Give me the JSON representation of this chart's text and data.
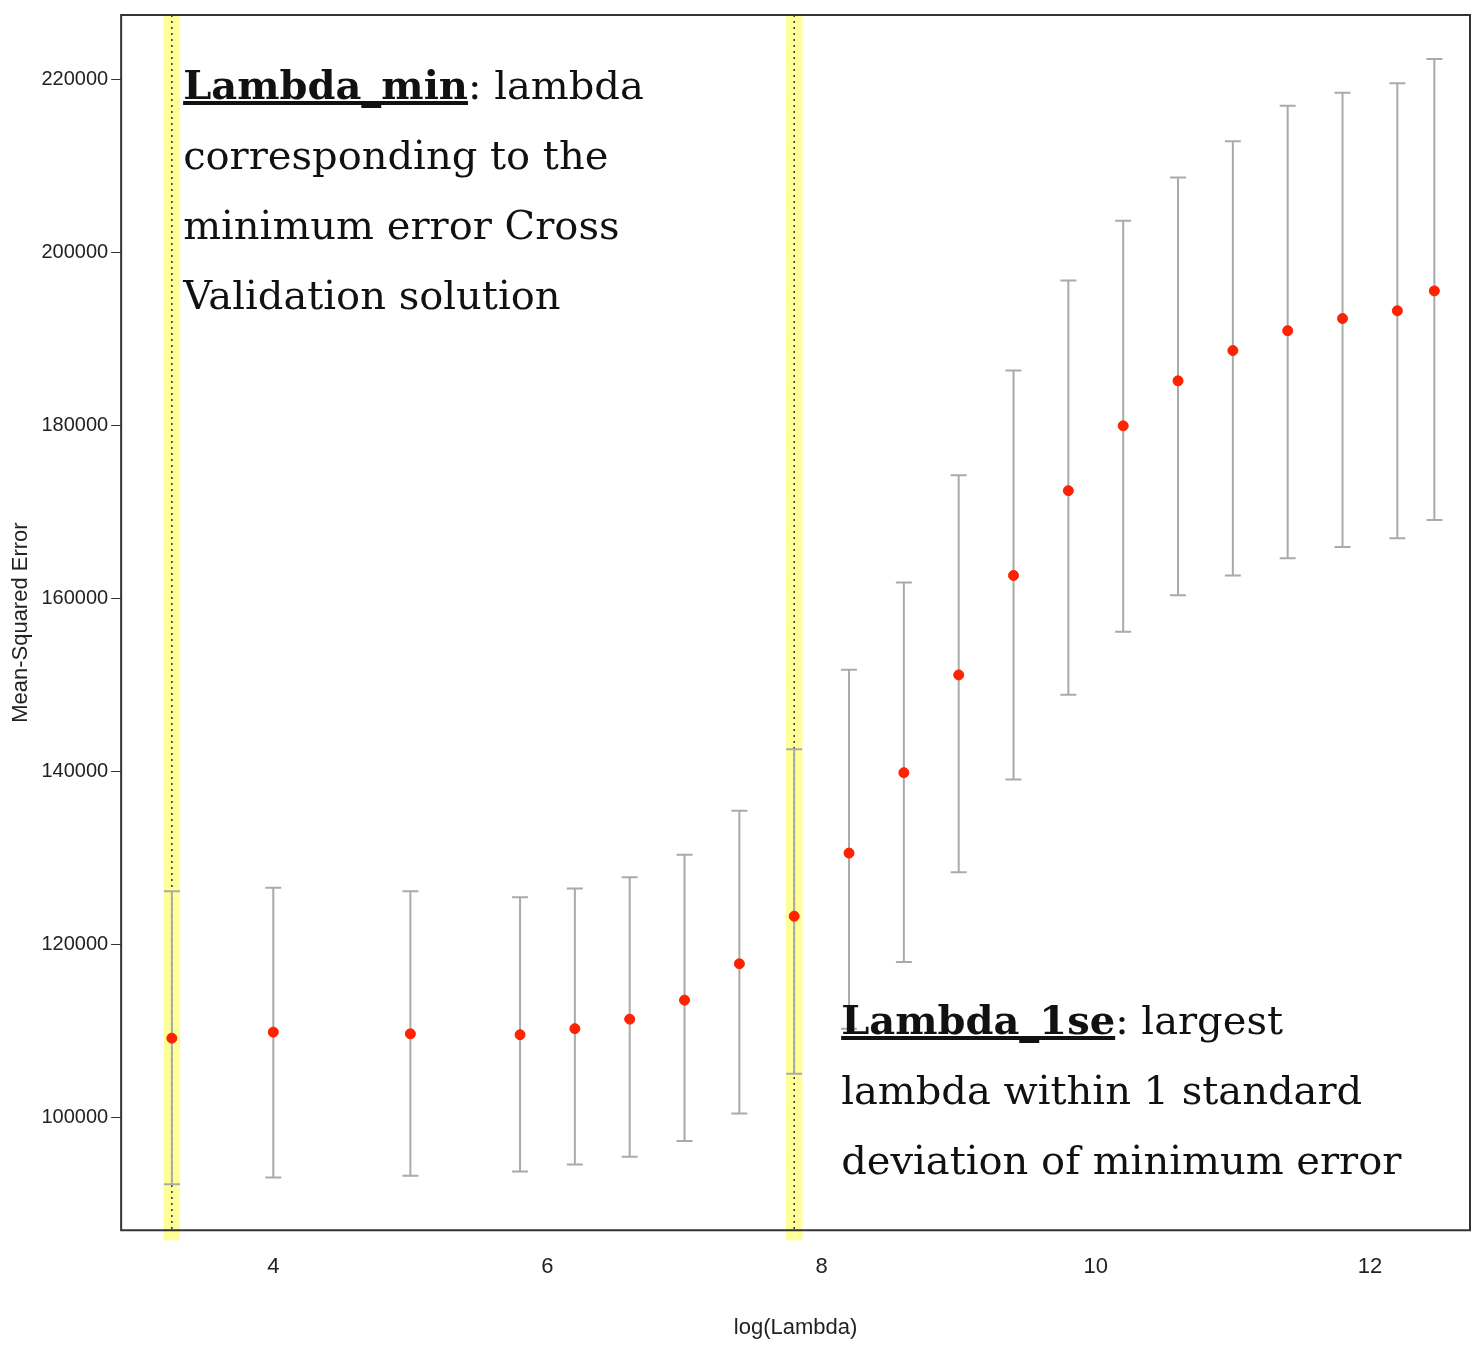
{
  "chart_data": {
    "type": "scatter",
    "xlabel": "log(Lambda)",
    "ylabel": "Mean-Squared Error",
    "x": [
      3.26,
      4,
      5,
      5.8,
      6.2,
      6.6,
      7.0,
      7.4,
      7.8,
      8.2,
      8.6,
      9.0,
      9.4,
      9.8,
      10.2,
      10.6,
      11.0,
      11.4,
      11.8,
      12.2,
      12.47
    ],
    "series": [
      {
        "color": "#ff2200",
        "values": [
          109200,
          109900,
          109700,
          109600,
          110300,
          111400,
          113600,
          117800,
          123300,
          130600,
          139900,
          151200,
          162700,
          172500,
          180000,
          185200,
          188700,
          191000,
          192400,
          193300,
          195600
        ],
        "errors": [
          [
            92300,
            126200
          ],
          [
            93100,
            126600
          ],
          [
            93300,
            126200
          ],
          [
            93800,
            125500
          ],
          [
            94600,
            126500
          ],
          [
            95500,
            127800
          ],
          [
            97300,
            130400
          ],
          [
            100500,
            135500
          ],
          [
            105100,
            142600
          ],
          [
            110300,
            151800
          ],
          [
            118000,
            161900
          ],
          [
            128400,
            174300
          ],
          [
            139100,
            186400
          ],
          [
            148900,
            196800
          ],
          [
            156200,
            203700
          ],
          [
            160400,
            208700
          ],
          [
            162700,
            212900
          ],
          [
            164700,
            217000
          ],
          [
            166000,
            218500
          ],
          [
            167000,
            219600
          ],
          [
            169100,
            222400
          ]
        ]
      }
    ],
    "xlim": [
      2.89,
      12.73
    ],
    "ylim": [
      87000,
      227500
    ],
    "xticks": [
      4,
      6,
      8,
      10,
      12
    ],
    "yticks": [
      100000,
      120000,
      140000,
      160000,
      180000,
      200000,
      220000
    ],
    "grid": false,
    "legend": false,
    "marker": "circle",
    "ref_lines": [
      {
        "axis": "x",
        "value": 3.26,
        "color": "#333333",
        "line_style": "dotted"
      },
      {
        "axis": "x",
        "value": 7.8,
        "color": "#333333",
        "line_style": "dotted"
      }
    ],
    "bands": [
      {
        "axis": "x",
        "from": 3.2,
        "to": 3.32,
        "color": "#ffff99"
      },
      {
        "axis": "x",
        "from": 7.74,
        "to": 7.86,
        "color": "#ffff99"
      }
    ],
    "annotations": [
      "Lambda_min: lambda corresponding to the minimum error Cross Validation solution",
      "Lambda_1se: largest lambda within 1 standard deviation of minimum error"
    ]
  }
}
